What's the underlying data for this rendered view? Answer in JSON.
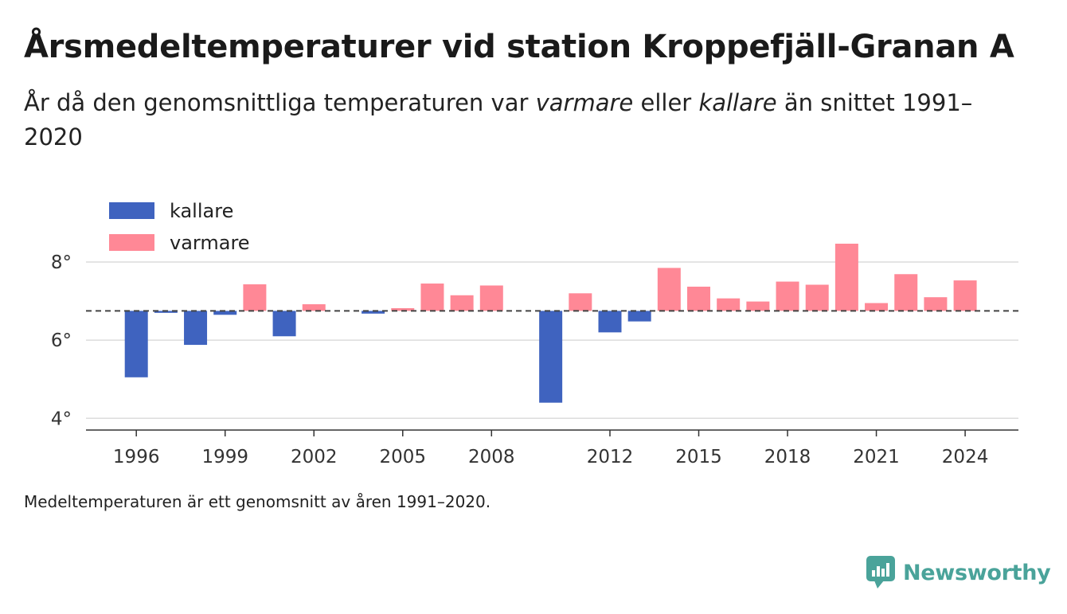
{
  "header": {
    "title": "Årsmedeltemperaturer vid station Kroppefjäll-Granan A",
    "subtitle_part1": "År då den genomsnittliga temperaturen var ",
    "subtitle_em1": "varmare",
    "subtitle_part2": " eller ",
    "subtitle_em2": "kallare",
    "subtitle_part3": " än snittet 1991–2020"
  },
  "footnote": "Medeltemperaturen är ett genomsnitt av åren 1991–2020.",
  "brand": {
    "name": "Newsworthy",
    "color": "#4aa39a",
    "icon": "newsworthy-logo-icon"
  },
  "chart_data": {
    "type": "bar",
    "baseline": 6.75,
    "baseline_style": "dashed",
    "colors": {
      "kallare": "#3f63bf",
      "varmare": "#ff8896"
    },
    "legend": [
      "kallare",
      "varmare"
    ],
    "legend_placement": "top-left",
    "grid": true,
    "ylim": [
      3.7,
      9.0
    ],
    "yticks": [
      4,
      6,
      8
    ],
    "ytick_labels": [
      "4°",
      "6°",
      "8°"
    ],
    "xlim": [
      1994.3,
      2025.8
    ],
    "xticks": [
      1996,
      1999,
      2002,
      2005,
      2008,
      2012,
      2015,
      2018,
      2021,
      2024
    ],
    "xtick_labels": [
      "1996",
      "1999",
      "2002",
      "2005",
      "2008",
      "2012",
      "2015",
      "2018",
      "2021",
      "2024"
    ],
    "x": [
      1996,
      1997,
      1998,
      1999,
      2000,
      2001,
      2002,
      2004,
      2005,
      2006,
      2007,
      2008,
      2010,
      2011,
      2012,
      2013,
      2014,
      2015,
      2016,
      2017,
      2018,
      2019,
      2020,
      2021,
      2022,
      2023,
      2024
    ],
    "values": [
      5.05,
      6.7,
      5.88,
      6.65,
      7.43,
      6.1,
      6.92,
      6.68,
      6.82,
      7.45,
      7.15,
      7.4,
      4.4,
      7.2,
      6.2,
      6.48,
      7.85,
      7.37,
      7.07,
      6.99,
      7.5,
      7.42,
      8.47,
      6.95,
      7.69,
      7.1,
      7.53
    ]
  }
}
